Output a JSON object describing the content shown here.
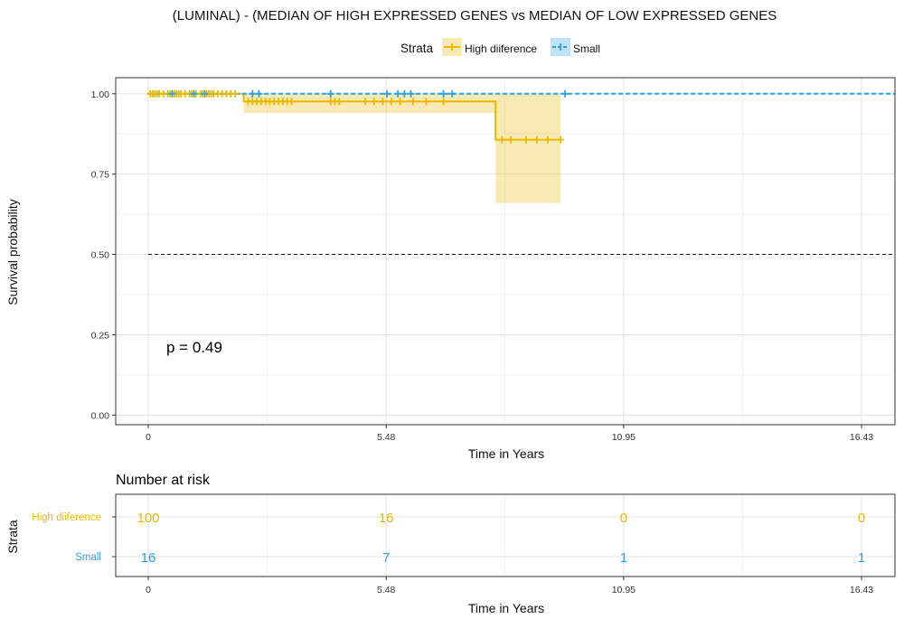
{
  "chart_data": [
    {
      "type": "line",
      "subtype": "kaplan-meier",
      "title": "(LUMINAL) - (MEDIAN OF HIGH EXPRESSED GENES vs MEDIAN OF LOW EXPRESSED GENES",
      "xlabel": "Time in Years",
      "ylabel": "Survival probability",
      "xlim": [
        -0.75,
        17.2
      ],
      "ylim": [
        -0.03,
        1.05
      ],
      "x_ticks": [
        "0",
        "5.48",
        "10.95",
        "16.43"
      ],
      "x_tick_values": [
        0,
        5.48,
        10.95,
        16.43
      ],
      "y_ticks": [
        "0.00",
        "0.25",
        "0.50",
        "0.75",
        "1.00"
      ],
      "y_tick_values": [
        0,
        0.25,
        0.5,
        0.75,
        1.0
      ],
      "median_line": 0.5,
      "grid": true,
      "legend": {
        "title": "Strata",
        "position": "top",
        "entries": [
          "High diiference",
          "Small"
        ]
      },
      "annotation": "p = 0.49",
      "series": [
        {
          "name": "High diiference",
          "color": "#E7B800",
          "line_style": "solid",
          "steps": [
            [
              0,
              1.0
            ],
            [
              2.2,
              0.976
            ],
            [
              8.0,
              0.857
            ],
            [
              9.5,
              0.857
            ]
          ],
          "ci_band": [
            [
              2.2,
              0.94,
              1.0
            ],
            [
              8.0,
              0.66,
              1.0
            ],
            [
              9.5,
              0.66,
              1.0
            ]
          ],
          "censor_times": [
            0.05,
            0.1,
            0.15,
            0.2,
            0.25,
            0.35,
            0.45,
            0.5,
            0.55,
            0.6,
            0.65,
            0.7,
            0.75,
            0.85,
            0.95,
            1.0,
            1.05,
            1.1,
            1.2,
            1.25,
            1.3,
            1.35,
            1.4,
            1.45,
            1.5,
            1.6,
            1.7,
            1.8,
            1.9,
            2.0,
            2.3,
            2.4,
            2.5,
            2.6,
            2.7,
            2.8,
            2.9,
            3.0,
            3.1,
            3.2,
            3.3,
            4.2,
            4.3,
            4.4,
            5.0,
            5.2,
            5.4,
            5.6,
            5.8,
            6.1,
            6.4,
            6.8,
            8.15,
            8.35,
            8.7,
            8.95,
            9.2,
            9.5
          ]
        },
        {
          "name": "Small",
          "color": "#2E9FDF",
          "line_style": "dashed",
          "steps": [
            [
              0,
              1.0
            ],
            [
              17.2,
              1.0
            ]
          ],
          "censor_times": [
            0.55,
            1.05,
            1.3,
            2.4,
            2.55,
            4.2,
            5.5,
            5.75,
            5.9,
            6.05,
            6.8,
            7.0,
            9.6
          ]
        }
      ]
    },
    {
      "type": "table",
      "title": "Number at risk",
      "xlabel": "Time in Years",
      "ylabel": "Strata",
      "x_ticks": [
        "0",
        "5.48",
        "10.95",
        "16.43"
      ],
      "x_tick_values": [
        0,
        5.48,
        10.95,
        16.43
      ],
      "rows": [
        {
          "name": "High diiference",
          "color": "#E7B800",
          "values": [
            "100",
            "16",
            "0",
            "0"
          ]
        },
        {
          "name": "Small",
          "color": "#2E9FDF",
          "values": [
            "16",
            "7",
            "1",
            "1"
          ]
        }
      ]
    }
  ]
}
